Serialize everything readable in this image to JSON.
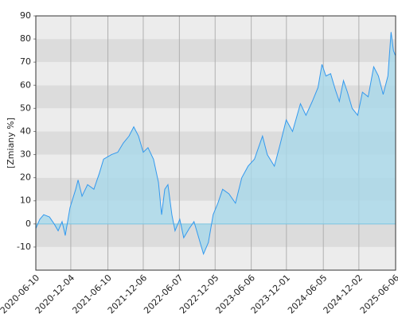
{
  "chart_data": {
    "type": "area",
    "y_label": "[Zmiany %]",
    "xlim": [
      "2020-06-10",
      "2025-06-06"
    ],
    "xticks": [
      "2020-06-10",
      "2020-12-04",
      "2021-06-10",
      "2021-12-06",
      "2022-06-07",
      "2022-12-05",
      "2023-06-06",
      "2023-12-01",
      "2024-06-05",
      "2024-12-02",
      "2025-06-06"
    ],
    "ylim": [
      -20,
      90
    ],
    "yticks": [
      -10,
      0,
      10,
      20,
      30,
      40,
      50,
      60,
      70,
      80,
      90
    ],
    "grid": true,
    "color": "#3399ee",
    "fill_color": "#a8d8ea",
    "x": [
      "2020-06-10",
      "2020-06-30",
      "2020-07-20",
      "2020-08-18",
      "2020-09-11",
      "2020-10-01",
      "2020-10-21",
      "2020-11-06",
      "2020-11-30",
      "2020-12-29",
      "2021-01-10",
      "2021-01-30",
      "2021-02-27",
      "2021-03-31",
      "2021-04-28",
      "2021-05-19",
      "2021-06-28",
      "2021-07-30",
      "2021-08-27",
      "2021-09-25",
      "2021-10-19",
      "2021-11-12",
      "2021-12-06",
      "2021-12-30",
      "2022-01-27",
      "2022-02-21",
      "2022-03-09",
      "2022-03-25",
      "2022-04-10",
      "2022-04-30",
      "2022-05-16",
      "2022-06-09",
      "2022-06-29",
      "2022-07-27",
      "2022-08-20",
      "2022-09-13",
      "2022-10-07",
      "2022-11-01",
      "2022-11-25",
      "2022-12-19",
      "2023-01-12",
      "2023-02-13",
      "2023-03-18",
      "2023-04-19",
      "2023-05-21",
      "2023-06-22",
      "2023-08-02",
      "2023-08-26",
      "2023-10-01",
      "2023-10-29",
      "2023-11-30",
      "2024-01-01",
      "2024-02-10",
      "2024-03-09",
      "2024-04-10",
      "2024-05-09",
      "2024-05-29",
      "2024-06-18",
      "2024-07-12",
      "2024-08-05",
      "2024-08-25",
      "2024-09-15",
      "2024-10-05",
      "2024-10-29",
      "2024-11-26",
      "2024-12-20",
      "2025-01-18",
      "2025-02-15",
      "2025-03-11",
      "2025-04-04",
      "2025-04-28",
      "2025-05-14",
      "2025-05-26",
      "2025-06-04"
    ],
    "values": [
      -2,
      2,
      4,
      3,
      0,
      -3,
      1,
      -5,
      7,
      15,
      19,
      12,
      17,
      15,
      22,
      28,
      30,
      31,
      35,
      38,
      42,
      38,
      31,
      33,
      28,
      18,
      4,
      15,
      17,
      4,
      -3,
      2,
      -6,
      -2,
      1,
      -6,
      -13,
      -8,
      4,
      9,
      15,
      13,
      9,
      20,
      25,
      28,
      38,
      30,
      25,
      34,
      45,
      40,
      52,
      47,
      53,
      59,
      69,
      64,
      65,
      58,
      53,
      62,
      57,
      50,
      47,
      57,
      55,
      68,
      64,
      56,
      64,
      83,
      75,
      73
    ]
  }
}
